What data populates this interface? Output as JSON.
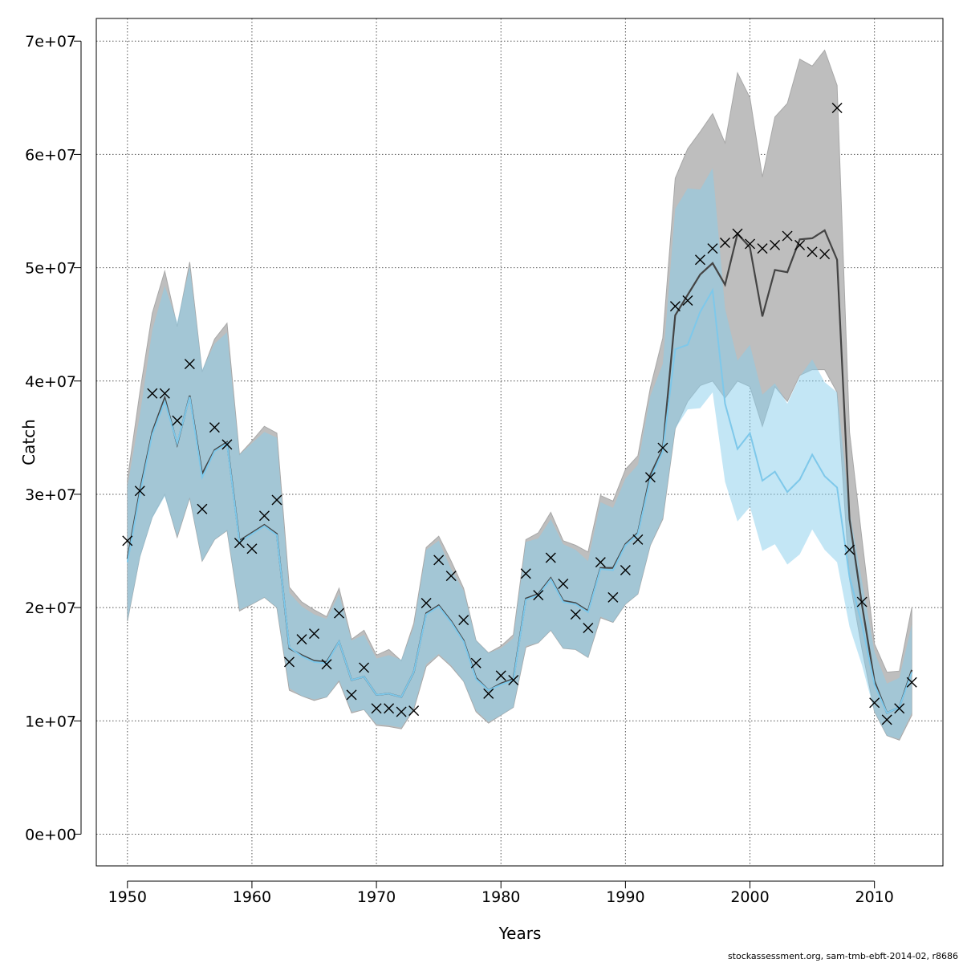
{
  "chart_data": {
    "type": "line",
    "xlabel": "Years",
    "ylabel": "Catch",
    "xlim": [
      1947.5,
      2015.5
    ],
    "ylim": [
      -2800000,
      72000000
    ],
    "x_ticks": [
      1950,
      1960,
      1970,
      1980,
      1990,
      2000,
      2010
    ],
    "y_ticks": [
      0,
      10000000,
      20000000,
      30000000,
      40000000,
      50000000,
      60000000,
      70000000
    ],
    "y_tick_labels": [
      "0e+00",
      "1e+07",
      "2e+07",
      "3e+07",
      "4e+07",
      "5e+07",
      "6e+07",
      "7e+07"
    ],
    "grid": true,
    "legend": "none",
    "colors": {
      "run1_band": "#bebebe",
      "run1_line": "#444444",
      "run2_band": "#87ceeb",
      "run2_line": "#7ec8ea",
      "points": "#000000",
      "grid": "#555555"
    },
    "years": [
      1950,
      1951,
      1952,
      1953,
      1954,
      1955,
      1956,
      1957,
      1958,
      1959,
      1960,
      1961,
      1962,
      1963,
      1964,
      1965,
      1966,
      1967,
      1968,
      1969,
      1970,
      1971,
      1972,
      1973,
      1974,
      1975,
      1976,
      1977,
      1978,
      1979,
      1980,
      1981,
      1982,
      1983,
      1984,
      1985,
      1986,
      1987,
      1988,
      1989,
      1990,
      1991,
      1992,
      1993,
      1994,
      1995,
      1996,
      1997,
      1998,
      1999,
      2000,
      2001,
      2002,
      2003,
      2004,
      2005,
      2006,
      2007,
      2008,
      2009,
      2010,
      2011,
      2012,
      2013
    ],
    "series": [
      {
        "values": [
          24300000,
          30300000,
          35500000,
          38500000,
          34400000,
          38700000,
          31800000,
          33900000,
          34600000,
          25900000,
          26600000,
          27300000,
          26500000,
          16400000,
          15800000,
          15300000,
          15200000,
          17000000,
          13600000,
          13900000,
          12300000,
          12400000,
          12100000,
          14300000,
          19500000,
          20200000,
          18800000,
          17100000,
          13800000,
          12700000,
          13300000,
          13700000,
          20800000,
          21200000,
          22600000,
          20600000,
          20400000,
          19700000,
          23500000,
          23500000,
          25600000,
          26600000,
          31700000,
          34000000,
          45800000,
          47600000,
          49400000,
          50400000,
          48500000,
          53000000,
          51800000,
          45700000,
          49800000,
          49600000,
          52500000,
          52600000,
          53300000,
          50700000,
          27800000,
          20200000,
          13500000,
          10700000,
          11200000,
          14500000
        ],
        "lower": [
          18800000,
          24500000,
          28000000,
          30000000,
          26200000,
          29700000,
          24100000,
          26000000,
          26800000,
          19700000,
          20300000,
          20900000,
          20000000,
          12700000,
          12200000,
          11800000,
          12100000,
          13500000,
          10700000,
          11000000,
          9600000,
          9500000,
          9300000,
          11000000,
          14800000,
          15800000,
          14800000,
          13500000,
          10800000,
          9800000,
          10500000,
          11200000,
          16500000,
          16900000,
          18000000,
          16400000,
          16300000,
          15600000,
          19100000,
          18700000,
          20300000,
          21200000,
          25500000,
          27800000,
          35800000,
          38200000,
          39600000,
          40000000,
          38500000,
          40000000,
          39500000,
          36000000,
          39500000,
          38200000,
          40500000,
          41000000,
          41000000,
          39000000,
          22500000,
          16300000,
          10800000,
          8700000,
          8300000,
          10500000
        ],
        "upper": [
          31300000,
          39000000,
          46000000,
          49700000,
          44800000,
          50500000,
          40800000,
          43700000,
          45100000,
          33500000,
          34700000,
          36000000,
          35400000,
          21800000,
          20500000,
          19800000,
          19200000,
          21700000,
          17200000,
          18000000,
          15800000,
          16300000,
          15300000,
          18600000,
          25300000,
          26300000,
          24100000,
          21700000,
          17100000,
          16000000,
          16600000,
          17600000,
          26000000,
          26600000,
          28400000,
          25900000,
          25500000,
          24900000,
          29900000,
          29400000,
          32200000,
          33400000,
          39400000,
          43800000,
          57900000,
          60500000,
          62000000,
          63600000,
          61000000,
          67200000,
          65000000,
          58000000,
          63300000,
          64500000,
          68400000,
          67800000,
          69200000,
          66100000,
          35500000,
          26000000,
          16800000,
          14300000,
          14400000,
          20000000
        ]
      },
      {
        "values": [
          24000000,
          30000000,
          35300000,
          38200000,
          34500000,
          38600000,
          31500000,
          33800000,
          34500000,
          25800000,
          26500000,
          27200000,
          26400000,
          16500000,
          15700000,
          15200000,
          15100000,
          17000000,
          13600000,
          13900000,
          12300000,
          12400000,
          12100000,
          14300000,
          19400000,
          20100000,
          18700000,
          17000000,
          13700000,
          12700000,
          13200000,
          13600000,
          20700000,
          21100000,
          22500000,
          20500000,
          20300000,
          19600000,
          23400000,
          23300000,
          25500000,
          26500000,
          31400000,
          33800000,
          42800000,
          43200000,
          46100000,
          48000000,
          38000000,
          34000000,
          35400000,
          31200000,
          32000000,
          30200000,
          31300000,
          33500000,
          31600000,
          30600000,
          22700000,
          18500000,
          13200000,
          10700000,
          11200000,
          14300000
        ],
        "lower": [
          18800000,
          24400000,
          27900000,
          29800000,
          26300000,
          29700000,
          24100000,
          26000000,
          26800000,
          19800000,
          20300000,
          20900000,
          20000000,
          12900000,
          12200000,
          11900000,
          12100000,
          13600000,
          10800000,
          11000000,
          9700000,
          9600000,
          9400000,
          11100000,
          15000000,
          15900000,
          14900000,
          13500000,
          10900000,
          9900000,
          10500000,
          11200000,
          16600000,
          16900000,
          18000000,
          16400000,
          16300000,
          15600000,
          19200000,
          18700000,
          20300000,
          21200000,
          25500000,
          27900000,
          35800000,
          37500000,
          37600000,
          39000000,
          31100000,
          27600000,
          28900000,
          25000000,
          25600000,
          23800000,
          24700000,
          26900000,
          25100000,
          24000000,
          18300000,
          14900000,
          10800000,
          8700000,
          8400000,
          10700000
        ],
        "upper": [
          30700000,
          37000000,
          44500000,
          48400000,
          45200000,
          50100000,
          41000000,
          43300000,
          44300000,
          33500000,
          34500000,
          35500000,
          35000000,
          21300000,
          20100000,
          19400000,
          19000000,
          21200000,
          17100000,
          17600000,
          15500000,
          15800000,
          15400000,
          18300000,
          25100000,
          25900000,
          23400000,
          21500000,
          17100000,
          16000000,
          16400000,
          17300000,
          25800000,
          26100000,
          27800000,
          25600000,
          25100000,
          24100000,
          29300000,
          28800000,
          31400000,
          32600000,
          38700000,
          41500000,
          55200000,
          57000000,
          56900000,
          58800000,
          46400000,
          41800000,
          43200000,
          38800000,
          39800000,
          38000000,
          40400000,
          41900000,
          39900000,
          39000000,
          28500000,
          22300000,
          16100000,
          13300000,
          13800000,
          18500000
        ]
      }
    ],
    "observed_catch": [
      25900000,
      30300000,
      38900000,
      38900000,
      36500000,
      41500000,
      28700000,
      35900000,
      34400000,
      25700000,
      25200000,
      28100000,
      29500000,
      15200000,
      17200000,
      17700000,
      15000000,
      19500000,
      12300000,
      14700000,
      11100000,
      11100000,
      10800000,
      10900000,
      20400000,
      24200000,
      22800000,
      18900000,
      15100000,
      12400000,
      14000000,
      13600000,
      23000000,
      21100000,
      24400000,
      22100000,
      19400000,
      18200000,
      24000000,
      20900000,
      23300000,
      26000000,
      31500000,
      34100000,
      46600000,
      47100000,
      50700000,
      51700000,
      52200000,
      53000000,
      52100000,
      51700000,
      52000000,
      52800000,
      52000000,
      51400000,
      51200000,
      64100000,
      25100000,
      20500000,
      11600000,
      10100000,
      11100000,
      13400000
    ]
  },
  "footer": {
    "credit": "stockassessment.org, sam-tmb-ebft-2014-02, r8686"
  }
}
